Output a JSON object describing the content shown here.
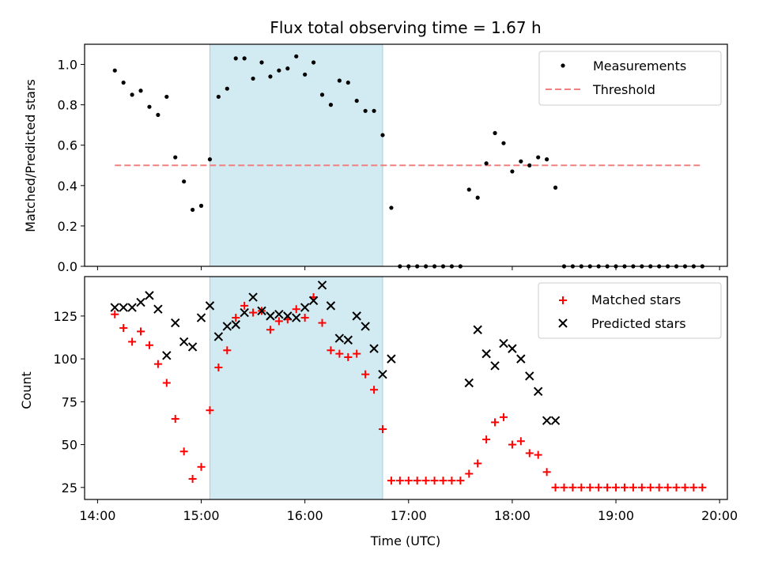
{
  "chart_data": [
    {
      "type": "scatter",
      "title": "Flux total observing time = 1.67 h",
      "xlabel": "",
      "ylabel": "Matched/Predicted stars",
      "xlim": [
        "14:00",
        "20:00"
      ],
      "ylim": [
        0.0,
        1.1
      ],
      "yticks": [
        0.0,
        0.2,
        0.4,
        0.6,
        0.8,
        1.0
      ],
      "ytick_labels": [
        "0.0",
        "0.2",
        "0.4",
        "0.6",
        "0.8",
        "1.0"
      ],
      "legend_position": "top-right",
      "highlight_span": [
        "15:05",
        "16:45"
      ],
      "series": [
        {
          "name": "Measurements",
          "style": "dots",
          "color": "#000000",
          "points": [
            [
              "14:10",
              0.97
            ],
            [
              "14:15",
              0.91
            ],
            [
              "14:20",
              0.85
            ],
            [
              "14:25",
              0.87
            ],
            [
              "14:30",
              0.79
            ],
            [
              "14:35",
              0.75
            ],
            [
              "14:40",
              0.84
            ],
            [
              "14:45",
              0.54
            ],
            [
              "14:50",
              0.42
            ],
            [
              "14:55",
              0.28
            ],
            [
              "15:00",
              0.3
            ],
            [
              "15:05",
              0.53
            ],
            [
              "15:10",
              0.84
            ],
            [
              "15:15",
              0.88
            ],
            [
              "15:20",
              1.03
            ],
            [
              "15:25",
              1.03
            ],
            [
              "15:30",
              0.93
            ],
            [
              "15:35",
              1.01
            ],
            [
              "15:40",
              0.94
            ],
            [
              "15:45",
              0.97
            ],
            [
              "15:50",
              0.98
            ],
            [
              "15:55",
              1.04
            ],
            [
              "16:00",
              0.95
            ],
            [
              "16:05",
              1.01
            ],
            [
              "16:10",
              0.85
            ],
            [
              "16:15",
              0.8
            ],
            [
              "16:20",
              0.92
            ],
            [
              "16:25",
              0.91
            ],
            [
              "16:30",
              0.82
            ],
            [
              "16:35",
              0.77
            ],
            [
              "16:40",
              0.77
            ],
            [
              "16:45",
              0.65
            ],
            [
              "16:50",
              0.29
            ],
            [
              "16:55",
              0.0
            ],
            [
              "17:00",
              0.0
            ],
            [
              "17:05",
              0.0
            ],
            [
              "17:10",
              0.0
            ],
            [
              "17:15",
              0.0
            ],
            [
              "17:20",
              0.0
            ],
            [
              "17:25",
              0.0
            ],
            [
              "17:30",
              0.0
            ],
            [
              "17:35",
              0.38
            ],
            [
              "17:40",
              0.34
            ],
            [
              "17:45",
              0.51
            ],
            [
              "17:50",
              0.66
            ],
            [
              "17:55",
              0.61
            ],
            [
              "18:00",
              0.47
            ],
            [
              "18:05",
              0.52
            ],
            [
              "18:10",
              0.5
            ],
            [
              "18:15",
              0.54
            ],
            [
              "18:20",
              0.53
            ],
            [
              "18:25",
              0.39
            ],
            [
              "18:30",
              0.0
            ],
            [
              "18:35",
              0.0
            ],
            [
              "18:40",
              0.0
            ],
            [
              "18:45",
              0.0
            ],
            [
              "18:50",
              0.0
            ],
            [
              "18:55",
              0.0
            ],
            [
              "19:00",
              0.0
            ],
            [
              "19:05",
              0.0
            ],
            [
              "19:10",
              0.0
            ],
            [
              "19:15",
              0.0
            ],
            [
              "19:20",
              0.0
            ],
            [
              "19:25",
              0.0
            ],
            [
              "19:30",
              0.0
            ],
            [
              "19:35",
              0.0
            ],
            [
              "19:40",
              0.0
            ],
            [
              "19:45",
              0.0
            ],
            [
              "19:50",
              0.0
            ]
          ]
        },
        {
          "name": "Threshold",
          "style": "dashed-line",
          "color": "#f08080",
          "points": [
            [
              "14:10",
              0.5
            ],
            [
              "19:50",
              0.5
            ]
          ]
        }
      ]
    },
    {
      "type": "scatter",
      "title": "",
      "xlabel": "Time (UTC)",
      "ylabel": "Count",
      "xlim": [
        "14:00",
        "20:00"
      ],
      "ylim": [
        18,
        148
      ],
      "yticks": [
        25,
        50,
        75,
        100,
        125
      ],
      "ytick_labels": [
        "25",
        "50",
        "75",
        "100",
        "125"
      ],
      "xticks": [
        "14:00",
        "15:00",
        "16:00",
        "17:00",
        "18:00",
        "19:00",
        "20:00"
      ],
      "xtick_labels": [
        "14:00",
        "15:00",
        "16:00",
        "17:00",
        "18:00",
        "19:00",
        "20:00"
      ],
      "legend_position": "top-right",
      "highlight_span": [
        "15:05",
        "16:45"
      ],
      "series": [
        {
          "name": "Matched stars",
          "style": "plus",
          "color": "#ff0000",
          "points": [
            [
              "14:10",
              126
            ],
            [
              "14:15",
              118
            ],
            [
              "14:20",
              110
            ],
            [
              "14:25",
              116
            ],
            [
              "14:30",
              108
            ],
            [
              "14:35",
              97
            ],
            [
              "14:40",
              86
            ],
            [
              "14:45",
              65
            ],
            [
              "14:50",
              46
            ],
            [
              "14:55",
              30
            ],
            [
              "15:00",
              37
            ],
            [
              "15:05",
              70
            ],
            [
              "15:10",
              95
            ],
            [
              "15:15",
              105
            ],
            [
              "15:20",
              124
            ],
            [
              "15:25",
              131
            ],
            [
              "15:30",
              127
            ],
            [
              "15:35",
              128
            ],
            [
              "15:40",
              117
            ],
            [
              "15:45",
              122
            ],
            [
              "15:50",
              123
            ],
            [
              "15:55",
              129
            ],
            [
              "16:00",
              124
            ],
            [
              "16:05",
              136
            ],
            [
              "16:10",
              121
            ],
            [
              "16:15",
              105
            ],
            [
              "16:20",
              103
            ],
            [
              "16:25",
              101
            ],
            [
              "16:30",
              103
            ],
            [
              "16:35",
              91
            ],
            [
              "16:40",
              82
            ],
            [
              "16:45",
              59
            ],
            [
              "16:50",
              29
            ],
            [
              "16:55",
              29
            ],
            [
              "17:00",
              29
            ],
            [
              "17:05",
              29
            ],
            [
              "17:10",
              29
            ],
            [
              "17:15",
              29
            ],
            [
              "17:20",
              29
            ],
            [
              "17:25",
              29
            ],
            [
              "17:30",
              29
            ],
            [
              "17:35",
              33
            ],
            [
              "17:40",
              39
            ],
            [
              "17:45",
              53
            ],
            [
              "17:50",
              63
            ],
            [
              "17:55",
              66
            ],
            [
              "18:00",
              50
            ],
            [
              "18:05",
              52
            ],
            [
              "18:10",
              45
            ],
            [
              "18:15",
              44
            ],
            [
              "18:20",
              34
            ],
            [
              "18:25",
              25
            ],
            [
              "18:30",
              25
            ],
            [
              "18:35",
              25
            ],
            [
              "18:40",
              25
            ],
            [
              "18:45",
              25
            ],
            [
              "18:50",
              25
            ],
            [
              "18:55",
              25
            ],
            [
              "19:00",
              25
            ],
            [
              "19:05",
              25
            ],
            [
              "19:10",
              25
            ],
            [
              "19:15",
              25
            ],
            [
              "19:20",
              25
            ],
            [
              "19:25",
              25
            ],
            [
              "19:30",
              25
            ],
            [
              "19:35",
              25
            ],
            [
              "19:40",
              25
            ],
            [
              "19:45",
              25
            ],
            [
              "19:50",
              25
            ]
          ]
        },
        {
          "name": "Predicted stars",
          "style": "x",
          "color": "#000000",
          "points": [
            [
              "14:10",
              130
            ],
            [
              "14:15",
              130
            ],
            [
              "14:20",
              130
            ],
            [
              "14:25",
              133
            ],
            [
              "14:30",
              137
            ],
            [
              "14:35",
              129
            ],
            [
              "14:40",
              102
            ],
            [
              "14:45",
              121
            ],
            [
              "14:50",
              110
            ],
            [
              "14:55",
              107
            ],
            [
              "15:00",
              124
            ],
            [
              "15:05",
              131
            ],
            [
              "15:10",
              113
            ],
            [
              "15:15",
              119
            ],
            [
              "15:20",
              120
            ],
            [
              "15:25",
              127
            ],
            [
              "15:30",
              136
            ],
            [
              "15:35",
              128
            ],
            [
              "15:40",
              125
            ],
            [
              "15:45",
              126
            ],
            [
              "15:50",
              125
            ],
            [
              "15:55",
              124
            ],
            [
              "16:00",
              130
            ],
            [
              "16:05",
              134
            ],
            [
              "16:10",
              143
            ],
            [
              "16:15",
              131
            ],
            [
              "16:20",
              112
            ],
            [
              "16:25",
              111
            ],
            [
              "16:30",
              125
            ],
            [
              "16:35",
              119
            ],
            [
              "16:40",
              106
            ],
            [
              "16:45",
              91
            ],
            [
              "16:50",
              100
            ],
            [
              "17:35",
              86
            ],
            [
              "17:40",
              117
            ],
            [
              "17:45",
              103
            ],
            [
              "17:50",
              96
            ],
            [
              "17:55",
              109
            ],
            [
              "18:00",
              106
            ],
            [
              "18:05",
              100
            ],
            [
              "18:10",
              90
            ],
            [
              "18:15",
              81
            ],
            [
              "18:20",
              64
            ],
            [
              "18:25",
              64
            ]
          ]
        }
      ]
    }
  ]
}
